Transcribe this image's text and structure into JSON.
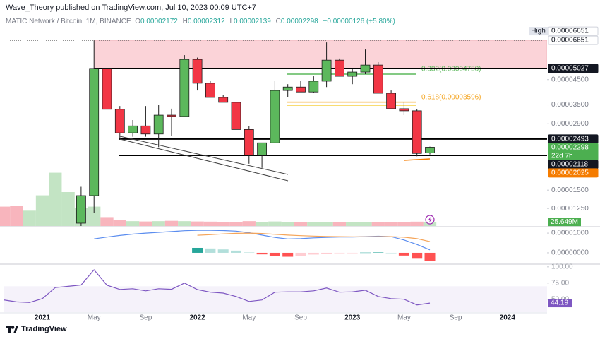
{
  "header": {
    "publisher": "Wave_Theory published on TradingView.com, Jul 10, 2023 00:09 UTC+7",
    "symbol": "MATIC Network / Bitcoin, 1M, BINANCE",
    "ohlc": [
      {
        "key": "O",
        "value": "0.00002172"
      },
      {
        "key": "H",
        "value": "0.00002312"
      },
      {
        "key": "L",
        "value": "0.00002139"
      },
      {
        "key": "C",
        "value": "0.00002298"
      }
    ],
    "change": "+0.00000126 (+5.80%)"
  },
  "footer": {
    "brand": "TradingView"
  },
  "chart_data": {
    "type": "candlestick",
    "log_scale": true,
    "up_color": "#5cb85c",
    "down_color": "#f23645",
    "categories": [
      null,
      null,
      null,
      "2021",
      null,
      null,
      null,
      "May",
      null,
      null,
      null,
      "Sep",
      null,
      null,
      null,
      "2022",
      null,
      null,
      null,
      "May",
      null,
      null,
      null,
      "Sep",
      null,
      null,
      null,
      "2023",
      null,
      null,
      null,
      "May",
      null,
      null,
      null,
      "Sep",
      null,
      null,
      null,
      "2024"
    ],
    "open": [
      null,
      null,
      null,
      null,
      null,
      null,
      1.08e-05,
      1.42e-05,
      5.03e-05,
      3.35e-05,
      2.65e-05,
      2.84e-05,
      2.62e-05,
      3.16e-05,
      3.12e-05,
      5.5e-05,
      4.34e-05,
      3.77e-05,
      3.59e-05,
      2.74e-05,
      2.12e-05,
      2.4e-05,
      4.04e-05,
      4.18e-05,
      3.98e-05,
      4.43e-05,
      5.46e-05,
      4.65e-05,
      4.85e-05,
      5.2e-05,
      3.93e-05,
      3.37e-05,
      3.3e-05,
      2.172e-05,
      null,
      null,
      null,
      null,
      null,
      null
    ],
    "high": [
      null,
      null,
      null,
      null,
      null,
      null,
      1.55e-05,
      6.651e-05,
      5.2e-05,
      3.46e-05,
      3.01e-05,
      3.46e-05,
      3.5e-05,
      3.37e-05,
      5.74e-05,
      5.6e-05,
      4.43e-05,
      3.85e-05,
      3.62e-05,
      2.84e-05,
      2.4e-05,
      4.43e-05,
      4.3e-05,
      4.43e-05,
      4.65e-05,
      6.51e-05,
      5.55e-05,
      5.03e-05,
      6.07e-05,
      5.35e-05,
      4.04e-05,
      3.59e-05,
      3.35e-05,
      2.312e-05,
      null,
      null,
      null,
      null,
      null,
      null
    ],
    "low": [
      null,
      null,
      null,
      null,
      null,
      null,
      1.05e-05,
      1.2e-05,
      3.16e-05,
      2.49e-05,
      2.55e-05,
      2.55e-05,
      2.3e-05,
      2.58e-05,
      3.1e-05,
      4.04e-05,
      3.77e-05,
      3.59e-05,
      2.74e-05,
      1.95e-05,
      1.87e-05,
      2.4e-05,
      3.77e-05,
      3.98e-05,
      3.93e-05,
      4.18e-05,
      4.65e-05,
      4.3e-05,
      4.75e-05,
      3.93e-05,
      3.37e-05,
      3.16e-05,
      2.1e-05,
      2.139e-05,
      null,
      null,
      null,
      null,
      null,
      null
    ],
    "close": [
      null,
      null,
      null,
      null,
      null,
      null,
      1.42e-05,
      5.03e-05,
      3.35e-05,
      2.65e-05,
      2.84e-05,
      2.62e-05,
      3.16e-05,
      3.12e-05,
      5.5e-05,
      4.34e-05,
      3.77e-05,
      3.59e-05,
      2.74e-05,
      2.12e-05,
      2.4e-05,
      4.04e-05,
      4.18e-05,
      3.98e-05,
      4.43e-05,
      5.46e-05,
      4.65e-05,
      4.85e-05,
      5.2e-05,
      3.93e-05,
      3.37e-05,
      3.3e-05,
      2.16e-05,
      2.298e-05,
      null,
      null,
      null,
      null,
      null,
      null
    ],
    "ylim": [
      1.05e-05,
      6.99e-05
    ],
    "yticks": [
      {
        "value": 4.5e-05,
        "label": "0.00004500"
      },
      {
        "value": 3.5e-05,
        "label": "0.00003500"
      },
      {
        "value": 2.9e-05,
        "label": "0.00002900"
      },
      {
        "value": 1.5e-05,
        "label": "0.00001500"
      },
      {
        "value": 1.25e-05,
        "label": "0.00001250"
      }
    ],
    "price_labels": [
      {
        "tag": "High",
        "value": 6.651e-05,
        "label": "0.00006651",
        "color": "#ffffff",
        "text_color": "#131722"
      },
      {
        "value": 6.651e-05,
        "label": "0.00006651",
        "color": "#ffffff",
        "text_color": "#131722",
        "line": "dotted"
      },
      {
        "value": 5.027e-05,
        "label": "0.00005027",
        "color": "#131722",
        "text_color": "#ffffff",
        "line": "solid"
      },
      {
        "value": 2.493e-05,
        "label": "0.00002493",
        "color": "#131722",
        "text_color": "#ffffff",
        "line": "solid"
      },
      {
        "value": 2.298e-05,
        "label": "0.00002298",
        "sub": "22d 7h",
        "color": "#4caf50",
        "text_color": "#ffffff"
      },
      {
        "value": 2.118e-05,
        "label": "0.00002118",
        "color": "#131722",
        "text_color": "#ffffff",
        "line": "solid"
      },
      {
        "value": 2.025e-05,
        "label": "0.00002025",
        "color": "#f57c00",
        "text_color": "#ffffff"
      }
    ],
    "zone": {
      "from": 5.027e-05,
      "to": 6.651e-05,
      "color": "#fbd3d8"
    },
    "fib": [
      {
        "label": "0.382(0.00004750)",
        "value": 4.75e-05,
        "color": "#5cb85c"
      },
      {
        "label": "0.618(0.00003596)",
        "value": 3.596e-05,
        "color": "#f5a623"
      }
    ],
    "volume": {
      "values": [
        120,
        125,
        95,
        190,
        330,
        210,
        110,
        120,
        55,
        35,
        30,
        28,
        30,
        32,
        30,
        28,
        27,
        25,
        26,
        30,
        26,
        28,
        25,
        24,
        26,
        24,
        23,
        25,
        24,
        23,
        24,
        23,
        27,
        25.649,
        null,
        null,
        null,
        null,
        null,
        null
      ],
      "colors": [
        "#f7a8b1",
        "#f7a8b1",
        "#b9dfba",
        "#b9dfba",
        "#b9dfba",
        "#b9dfba",
        "#b9dfba",
        "#b9dfba",
        "#f7a8b1",
        "#f7a8b1",
        "#b9dfba",
        "#f7a8b1",
        "#b9dfba",
        "#f7a8b1",
        "#b9dfba",
        "#f7a8b1",
        "#f7a8b1",
        "#f7a8b1",
        "#f7a8b1",
        "#f7a8b1",
        "#b9dfba",
        "#b9dfba",
        "#b9dfba",
        "#f7a8b1",
        "#b9dfba",
        "#b9dfba",
        "#f7a8b1",
        "#b9dfba",
        "#b9dfba",
        "#f7a8b1",
        "#f7a8b1",
        "#f7a8b1",
        "#f7a8b1",
        "#b9dfba",
        null,
        null,
        null,
        null,
        null,
        null
      ],
      "ylim": [
        0,
        350
      ],
      "label": "25.649M",
      "label_color": "#4caf50"
    },
    "macd": {
      "macd": [
        null,
        null,
        null,
        null,
        null,
        null,
        null,
        7.1e-06,
        8e-06,
        8.8e-06,
        9.5e-06,
        1e-05,
        1.04e-05,
        1.08e-05,
        1.12e-05,
        1.14e-05,
        1.14e-05,
        1.13e-05,
        1.1e-05,
        1.02e-05,
        9e-06,
        7.8e-06,
        7e-06,
        7.2e-06,
        7.6e-06,
        7.8e-06,
        8e-06,
        8e-06,
        8.2e-06,
        8.4e-06,
        8.2e-06,
        6.5e-06,
        4.2e-06,
        1.5e-06,
        null,
        null,
        null,
        null,
        null,
        null
      ],
      "signal": [
        null,
        null,
        null,
        null,
        null,
        null,
        null,
        null,
        null,
        null,
        null,
        null,
        null,
        null,
        null,
        8.9e-06,
        9.2e-06,
        9.6e-06,
        9.9e-06,
        1e-05,
        9.8e-06,
        9.4e-06,
        9e-06,
        8.7e-06,
        8.5e-06,
        8.3e-06,
        8.2e-06,
        8.1e-06,
        8.1e-06,
        8.2e-06,
        8.2e-06,
        7.9e-06,
        7.2e-06,
        5.7e-06,
        null,
        null,
        null,
        null,
        null,
        null
      ],
      "histogram": [
        null,
        null,
        null,
        null,
        null,
        null,
        null,
        null,
        null,
        null,
        null,
        null,
        null,
        null,
        null,
        2.5e-06,
        2.2e-06,
        1.7e-06,
        1.1e-06,
        2e-07,
        -8e-07,
        -1.6e-06,
        -2e-06,
        -1.5e-06,
        -9e-07,
        -5e-07,
        -2e-07,
        -1e-07,
        1e-07,
        2e-07,
        0,
        -1.4e-06,
        -3e-06,
        -4.2e-06,
        null,
        null,
        null,
        null,
        null,
        null
      ],
      "macd_color": "#5b8def",
      "signal_color": "#f5a55a",
      "hist_colors": [
        "#26a69a",
        "#b2dfdb",
        "#ffcdd2",
        "#ff5252"
      ],
      "ylim": [
        -5.4e-06,
        1.29e-05
      ],
      "yticks": [
        {
          "value": 1e-05,
          "label": "0.00001000"
        },
        {
          "value": 0,
          "label": "0.00000000"
        }
      ]
    },
    "rsi": {
      "values": [
        49,
        46,
        45,
        51,
        68,
        70,
        72,
        95.5,
        71.7,
        65.2,
        66.3,
        63,
        66.3,
        65.4,
        75,
        65,
        60.9,
        59.5,
        54.3,
        46.7,
        48.9,
        60.9,
        61.5,
        61.5,
        63,
        67.4,
        60.9,
        61.5,
        64,
        54.3,
        51,
        50,
        41.3,
        44.19,
        null,
        null,
        null,
        null,
        null,
        null
      ],
      "color": "#7e57c2",
      "band": [
        30,
        70
      ],
      "ylim": [
        29,
        102
      ],
      "label": "44.19",
      "yticks": [
        {
          "value": 100,
          "label": "100.00"
        },
        {
          "value": 75,
          "label": "75.00"
        },
        {
          "value": 50,
          "label": "50.00"
        }
      ]
    }
  }
}
